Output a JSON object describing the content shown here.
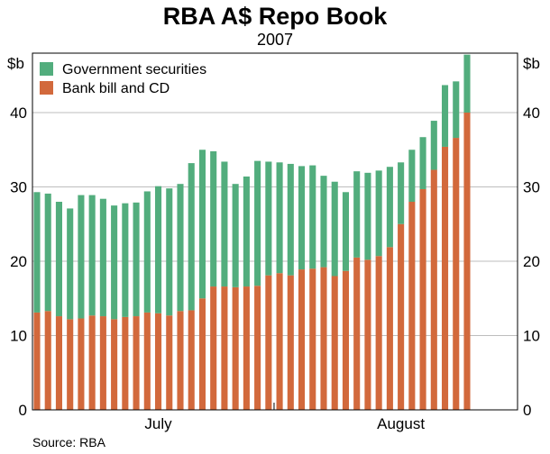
{
  "chart_data": {
    "type": "bar",
    "stacked": true,
    "title": "RBA A$ Repo Book",
    "subtitle": "2007",
    "unit_left": "$b",
    "unit_right": "$b",
    "ylim": [
      0,
      48
    ],
    "yticks": [
      0,
      10,
      20,
      30,
      40
    ],
    "grid": true,
    "legend_position": "top-left",
    "month_labels": [
      {
        "label": "July",
        "at_bar": 11
      },
      {
        "label": "August",
        "at_bar": 33
      }
    ],
    "series": [
      {
        "name": "Bank bill and CD",
        "color": "#d2693c",
        "values": [
          13.1,
          13.3,
          12.6,
          12.2,
          12.3,
          12.7,
          12.6,
          12.2,
          12.5,
          12.6,
          13.1,
          13.0,
          12.7,
          13.3,
          13.4,
          15.0,
          16.6,
          16.6,
          16.5,
          16.6,
          16.7,
          18.1,
          18.4,
          18.1,
          18.9,
          19.0,
          19.2,
          18.0,
          18.7,
          20.5,
          20.2,
          20.7,
          21.9,
          25.0,
          28.0,
          29.7,
          32.3,
          35.4,
          36.6,
          40.0
        ]
      },
      {
        "name": "Government securities",
        "color": "#52ad7d",
        "values": [
          16.2,
          15.8,
          15.4,
          14.9,
          16.6,
          16.2,
          15.8,
          15.3,
          15.3,
          15.3,
          16.3,
          17.1,
          17.1,
          17.1,
          19.8,
          20.0,
          18.2,
          16.8,
          13.9,
          14.8,
          16.8,
          15.3,
          14.9,
          15.0,
          13.9,
          13.9,
          12.3,
          12.7,
          10.6,
          11.6,
          11.7,
          11.5,
          10.8,
          8.3,
          7.0,
          7.0,
          6.6,
          8.3,
          7.6,
          7.8
        ]
      }
    ],
    "source": "Source: RBA"
  }
}
